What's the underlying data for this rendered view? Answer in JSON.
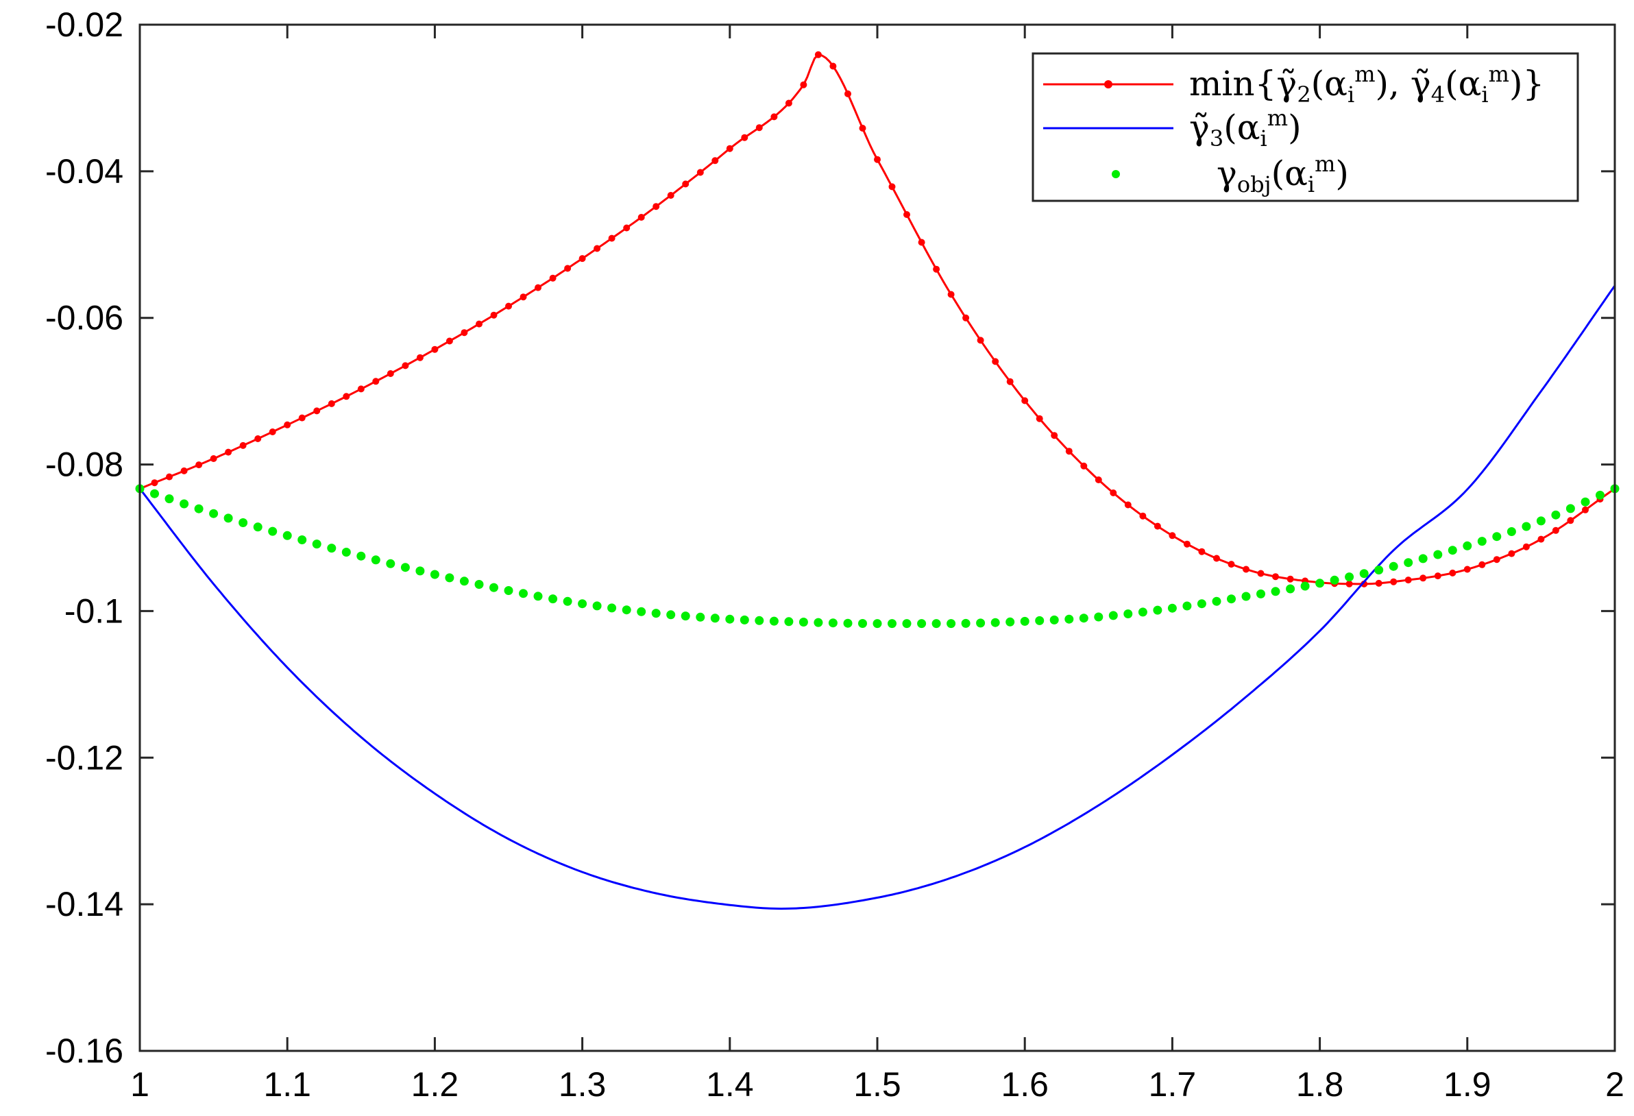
{
  "chart_data": {
    "type": "line",
    "xlim": [
      1,
      2
    ],
    "ylim": [
      -0.16,
      -0.02
    ],
    "x_ticks": [
      "1",
      "1.1",
      "1.2",
      "1.3",
      "1.4",
      "1.5",
      "1.6",
      "1.7",
      "1.8",
      "1.9",
      "2"
    ],
    "y_ticks": [
      "-0.02",
      "-0.04",
      "-0.06",
      "-0.08",
      "-0.1",
      "-0.12",
      "-0.14",
      "-0.16"
    ],
    "grid": false,
    "legend_position": "top-right",
    "series": [
      {
        "name": "min{γ̃₂(αᵢᵐ), γ̃₄(αᵢᵐ)}",
        "color": "#ff0000",
        "style": "line-with-dot-markers",
        "x": [
          1.0,
          1.05,
          1.1,
          1.15,
          1.2,
          1.25,
          1.3,
          1.35,
          1.4,
          1.45,
          1.46,
          1.5,
          1.55,
          1.6,
          1.65,
          1.7,
          1.75,
          1.8,
          1.83,
          1.85,
          1.9,
          1.95,
          2.0
        ],
        "y": [
          -0.0833,
          -0.0792,
          -0.0746,
          -0.0697,
          -0.0643,
          -0.0584,
          -0.0519,
          -0.0448,
          -0.0369,
          -0.0282,
          -0.0241,
          -0.0384,
          -0.0568,
          -0.0713,
          -0.0821,
          -0.0897,
          -0.0943,
          -0.0961,
          -0.0963,
          -0.096,
          -0.0943,
          -0.0902,
          -0.0833
        ]
      },
      {
        "name": "γ̃₃(αᵢᵐ)",
        "color": "#0000ff",
        "style": "line",
        "x": [
          1.0,
          1.05,
          1.1,
          1.15,
          1.2,
          1.25,
          1.3,
          1.35,
          1.4,
          1.435,
          1.5,
          1.55,
          1.6,
          1.65,
          1.7,
          1.75,
          1.8,
          1.85,
          1.9,
          1.95,
          2.0
        ],
        "y": [
          -0.0833,
          -0.0963,
          -0.1077,
          -0.1172,
          -0.1249,
          -0.1311,
          -0.1356,
          -0.1385,
          -0.1401,
          -0.1406,
          -0.1391,
          -0.1364,
          -0.1322,
          -0.1265,
          -0.1196,
          -0.1117,
          -0.1027,
          -0.0917,
          -0.0834,
          -0.07,
          -0.0556
        ]
      },
      {
        "name": "γobj(αᵢᵐ)",
        "color": "#00ee00",
        "style": "dotted",
        "x": [
          1.0,
          1.05,
          1.1,
          1.15,
          1.2,
          1.25,
          1.3,
          1.35,
          1.4,
          1.45,
          1.5,
          1.55,
          1.6,
          1.65,
          1.7,
          1.75,
          1.8,
          1.85,
          1.9,
          1.95,
          2.0
        ],
        "y": [
          -0.0833,
          -0.0867,
          -0.0897,
          -0.0925,
          -0.095,
          -0.0972,
          -0.099,
          -0.1003,
          -0.1011,
          -0.1015,
          -0.1017,
          -0.1017,
          -0.1014,
          -0.1008,
          -0.0996,
          -0.098,
          -0.0962,
          -0.0939,
          -0.0911,
          -0.0877,
          -0.0833
        ]
      }
    ]
  }
}
